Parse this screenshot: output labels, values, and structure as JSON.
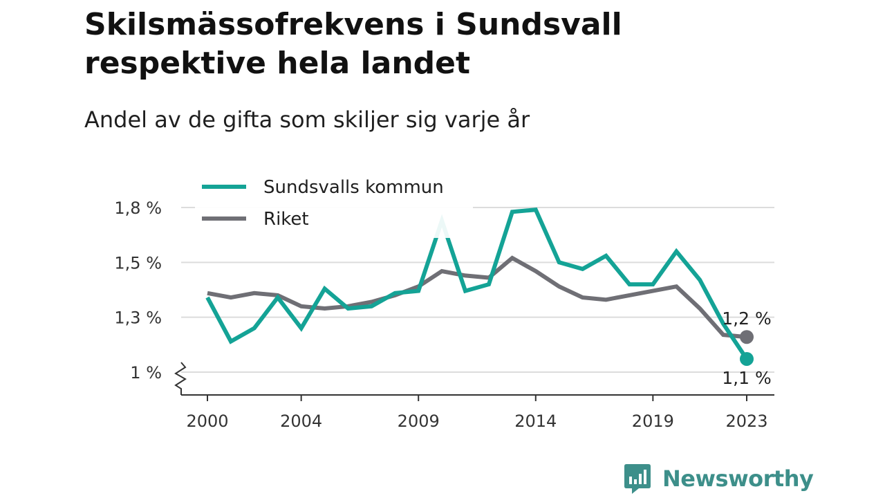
{
  "header": {
    "title": "Skilsmässofrekvens i Sundsvall respektive hela landet",
    "subtitle": "Andel av de gifta som skiljer sig varje år"
  },
  "branding": {
    "name": "Newsworthy",
    "icon": "newsworthy-logo-icon",
    "color": "#3d8f8a"
  },
  "chart_data": {
    "type": "line",
    "x": [
      2000,
      2001,
      2002,
      2003,
      2004,
      2005,
      2006,
      2007,
      2008,
      2009,
      2010,
      2011,
      2012,
      2013,
      2014,
      2015,
      2016,
      2017,
      2018,
      2019,
      2020,
      2021,
      2022,
      2023
    ],
    "x_ticks": [
      2000,
      2004,
      2009,
      2014,
      2019,
      2023
    ],
    "x_tick_labels": [
      "2000",
      "2004",
      "2009",
      "2014",
      "2019",
      "2023"
    ],
    "y_ticks": [
      1.0,
      1.25,
      1.5,
      1.75
    ],
    "y_tick_labels": [
      "1 %",
      "1,3 %",
      "1,5 %",
      "1,8 %"
    ],
    "ylim": [
      0.9,
      1.75
    ],
    "y_axis_break": true,
    "grid": "horizontal",
    "legend_position": "top-left",
    "series": [
      {
        "name": "Sundsvalls kommun",
        "color": "#14a396",
        "values": [
          1.34,
          1.14,
          1.2,
          1.34,
          1.2,
          1.38,
          1.29,
          1.3,
          1.36,
          1.37,
          1.69,
          1.37,
          1.4,
          1.73,
          1.74,
          1.5,
          1.47,
          1.53,
          1.4,
          1.4,
          1.55,
          1.42,
          1.22,
          1.06
        ],
        "end_label": "1,1 %"
      },
      {
        "name": "Riket",
        "color": "#6f6f75",
        "values": [
          1.36,
          1.34,
          1.36,
          1.35,
          1.3,
          1.29,
          1.3,
          1.32,
          1.35,
          1.39,
          1.46,
          1.44,
          1.43,
          1.52,
          1.46,
          1.39,
          1.34,
          1.33,
          1.35,
          1.37,
          1.39,
          1.29,
          1.17,
          1.16
        ],
        "end_label": "1,2 %"
      }
    ]
  }
}
